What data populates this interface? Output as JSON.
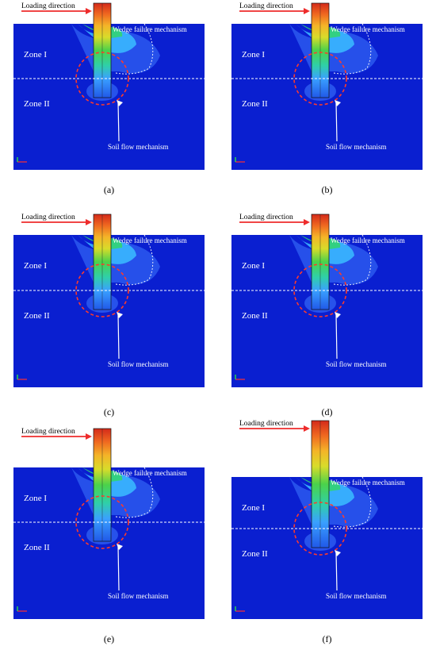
{
  "colors": {
    "soil": "#0a1fd0",
    "soil_light": "#2d5cf0",
    "arrow": "#ee2c2c",
    "dashed": "#ffffff",
    "circle": "#ff3a2a"
  },
  "panels": [
    {
      "id": "a",
      "caption": "(a)",
      "loading": "Loading direction",
      "wedge": "Wedge failure mechanism",
      "zone1": "Zone I",
      "zone2": "Zone II",
      "soilflow": "Soil flow mechanism"
    },
    {
      "id": "b",
      "caption": "(b)",
      "loading": "Loading direction",
      "wedge": "Wedge failure mechanism",
      "zone1": "Zone I",
      "zone2": "Zone II",
      "soilflow": "Soil flow mechanism"
    },
    {
      "id": "c",
      "caption": "(c)",
      "loading": "Loading direction",
      "wedge": "Wedge failure mechanism",
      "zone1": "Zone I",
      "zone2": "Zone II",
      "soilflow": "Soil flow mechanism"
    },
    {
      "id": "d",
      "caption": "(d)",
      "loading": "Loading direction",
      "wedge": "Wedge failure mechanism",
      "zone1": "Zone I",
      "zone2": "Zone II",
      "soilflow": "Soil flow mechanism"
    },
    {
      "id": "e",
      "caption": "(e)",
      "loading": "Loading direction",
      "wedge": "Wedge failure mechanism",
      "zone1": "Zone I",
      "zone2": "Zone II",
      "soilflow": "Soil flow mechanism"
    },
    {
      "id": "f",
      "caption": "(f)",
      "loading": "Loading direction",
      "wedge": "Wedge failure mechanism",
      "zone1": "Zone I",
      "zone2": "Zone II",
      "soilflow": "Soil flow mechanism"
    }
  ]
}
